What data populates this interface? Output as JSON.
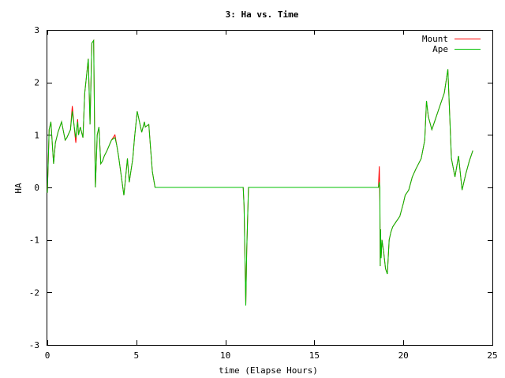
{
  "chart_data": {
    "type": "line",
    "title": "3: Ha vs. Time",
    "xlabel": "time (Elapse Hours)",
    "ylabel": "HA",
    "xlim": [
      0,
      25
    ],
    "ylim": [
      -3,
      3
    ],
    "xticks": [
      0,
      5,
      10,
      15,
      20,
      25
    ],
    "yticks": [
      -3,
      -2,
      -1,
      0,
      1,
      2,
      3
    ],
    "grid": false,
    "legend_position": "top-right",
    "series": [
      {
        "name": "Mount",
        "color": "#ff0000",
        "x": [
          0.0,
          0.1,
          0.2,
          0.35,
          0.45,
          0.6,
          0.8,
          1.0,
          1.1,
          1.3,
          1.4,
          1.55,
          1.6,
          1.65,
          1.7,
          1.75,
          1.85,
          2.0,
          2.1,
          2.3,
          2.4,
          2.5,
          2.6,
          2.65,
          2.7,
          2.8,
          2.9,
          3.0,
          3.1,
          3.2,
          3.35,
          3.6,
          3.8,
          3.9,
          4.0,
          4.1,
          4.3,
          4.5,
          4.6,
          4.8,
          4.9,
          5.05,
          5.3,
          5.45,
          5.5,
          5.7,
          5.8,
          5.9,
          6.05,
          6.1,
          6.2,
          7.0,
          8.0,
          9.0,
          10.0,
          11.0,
          11.05,
          11.15,
          11.2,
          11.3,
          12.0,
          13.0,
          14.0,
          15.0,
          16.0,
          17.0,
          18.0,
          18.6,
          18.65,
          18.68,
          18.7,
          18.72,
          18.75,
          18.8,
          18.9,
          19.0,
          19.1,
          19.2,
          19.3,
          19.4,
          19.5,
          19.6,
          19.8,
          20.0,
          20.1,
          20.3,
          20.5,
          20.7,
          21.0,
          21.2,
          21.3,
          21.4,
          21.6,
          21.8,
          22.0,
          22.3,
          22.5,
          22.7,
          22.9,
          23.1,
          23.3,
          23.5,
          23.7,
          23.9
        ],
        "y": [
          -0.1,
          1.1,
          1.25,
          0.45,
          0.85,
          1.05,
          1.25,
          0.9,
          0.95,
          1.1,
          1.55,
          1.0,
          0.85,
          1.1,
          1.3,
          1.0,
          1.15,
          0.95,
          1.8,
          2.45,
          1.2,
          2.75,
          2.8,
          1.2,
          0.0,
          1.0,
          1.15,
          0.45,
          0.5,
          0.6,
          0.7,
          0.9,
          1.0,
          0.8,
          0.6,
          0.35,
          -0.15,
          0.55,
          0.1,
          0.55,
          0.95,
          1.45,
          1.05,
          1.25,
          1.15,
          1.2,
          0.75,
          0.3,
          0.0,
          0.0,
          0.0,
          0.0,
          0.0,
          0.0,
          0.0,
          0.0,
          -0.35,
          -2.25,
          -1.2,
          0.0,
          0.0,
          0.0,
          0.0,
          0.0,
          0.0,
          0.0,
          0.0,
          0.0,
          0.4,
          -0.25,
          -1.5,
          -0.8,
          -1.35,
          -1.0,
          -1.25,
          -1.55,
          -1.65,
          -1.0,
          -0.85,
          -0.75,
          -0.7,
          -0.65,
          -0.55,
          -0.3,
          -0.15,
          -0.05,
          0.2,
          0.35,
          0.55,
          0.9,
          1.65,
          1.35,
          1.1,
          1.3,
          1.5,
          1.8,
          2.25,
          0.55,
          0.2,
          0.6,
          -0.05,
          0.25,
          0.5,
          0.7
        ]
      },
      {
        "name": "Ape",
        "color": "#00c000",
        "x": [
          0.0,
          0.1,
          0.2,
          0.35,
          0.45,
          0.6,
          0.8,
          1.0,
          1.1,
          1.3,
          1.4,
          1.55,
          1.6,
          1.65,
          1.7,
          1.75,
          1.85,
          2.0,
          2.1,
          2.3,
          2.4,
          2.5,
          2.6,
          2.65,
          2.7,
          2.8,
          2.9,
          3.0,
          3.1,
          3.2,
          3.35,
          3.6,
          3.8,
          3.9,
          4.0,
          4.1,
          4.3,
          4.5,
          4.6,
          4.8,
          4.9,
          5.05,
          5.3,
          5.45,
          5.5,
          5.7,
          5.8,
          5.9,
          6.05,
          6.1,
          6.2,
          7.0,
          8.0,
          9.0,
          10.0,
          11.0,
          11.05,
          11.15,
          11.2,
          11.3,
          12.0,
          13.0,
          14.0,
          15.0,
          16.0,
          17.0,
          18.0,
          18.6,
          18.65,
          18.68,
          18.7,
          18.72,
          18.75,
          18.8,
          18.9,
          19.0,
          19.1,
          19.2,
          19.3,
          19.4,
          19.5,
          19.6,
          19.8,
          20.0,
          20.1,
          20.3,
          20.5,
          20.7,
          21.0,
          21.2,
          21.3,
          21.4,
          21.6,
          21.8,
          22.0,
          22.3,
          22.5,
          22.7,
          22.9,
          23.1,
          23.3,
          23.5,
          23.7,
          23.9
        ],
        "y": [
          -0.1,
          1.1,
          1.25,
          0.45,
          0.85,
          1.05,
          1.25,
          0.9,
          0.95,
          1.1,
          1.45,
          1.05,
          0.95,
          1.1,
          1.25,
          1.0,
          1.15,
          0.95,
          1.8,
          2.45,
          1.2,
          2.75,
          2.8,
          1.2,
          0.0,
          1.0,
          1.15,
          0.45,
          0.5,
          0.6,
          0.7,
          0.9,
          0.95,
          0.8,
          0.6,
          0.35,
          -0.15,
          0.55,
          0.1,
          0.55,
          0.95,
          1.45,
          1.05,
          1.25,
          1.15,
          1.2,
          0.75,
          0.3,
          0.0,
          0.0,
          0.0,
          0.0,
          0.0,
          0.0,
          0.0,
          0.0,
          -0.35,
          -2.25,
          -1.2,
          0.0,
          0.0,
          0.0,
          0.0,
          0.0,
          0.0,
          0.0,
          0.0,
          0.0,
          0.1,
          0.0,
          -1.5,
          -0.8,
          -1.35,
          -1.0,
          -1.25,
          -1.55,
          -1.65,
          -1.0,
          -0.85,
          -0.75,
          -0.7,
          -0.65,
          -0.55,
          -0.3,
          -0.15,
          -0.05,
          0.2,
          0.35,
          0.55,
          0.9,
          1.65,
          1.35,
          1.1,
          1.3,
          1.5,
          1.8,
          2.25,
          0.55,
          0.2,
          0.6,
          -0.05,
          0.25,
          0.5,
          0.7
        ]
      }
    ]
  }
}
